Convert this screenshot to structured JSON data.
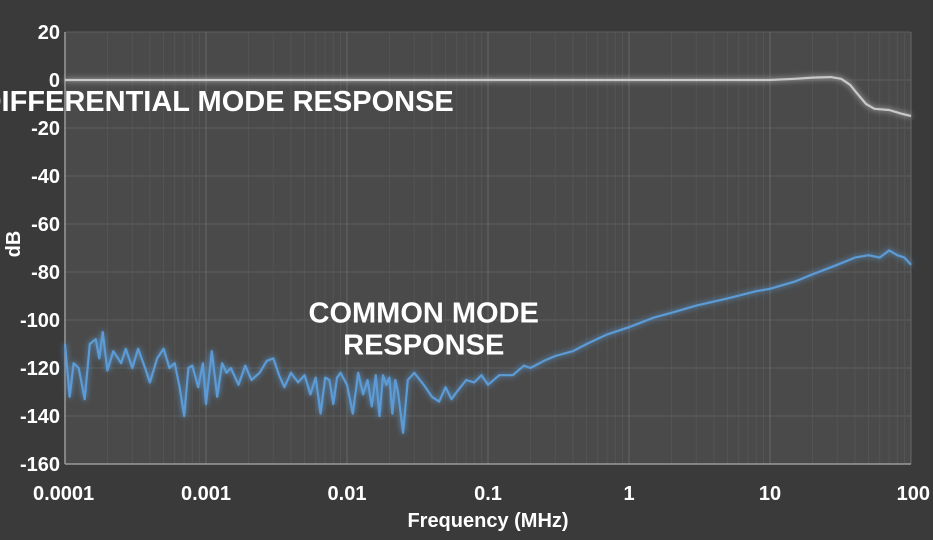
{
  "chart_data": {
    "type": "line",
    "xlabel": "Frequency (MHz)",
    "ylabel": "dB",
    "x_scale": "log",
    "xlim": [
      0.0001,
      100
    ],
    "ylim": [
      -160,
      20
    ],
    "grid": true,
    "x_ticks": [
      {
        "value": 0.0001,
        "label": "0.0001"
      },
      {
        "value": 0.001,
        "label": "0.001"
      },
      {
        "value": 0.01,
        "label": "0.01"
      },
      {
        "value": 0.1,
        "label": "0.1"
      },
      {
        "value": 1,
        "label": "1"
      },
      {
        "value": 10,
        "label": "10"
      },
      {
        "value": 100,
        "label": "100"
      }
    ],
    "y_ticks": [
      {
        "value": 20,
        "label": "20"
      },
      {
        "value": 0,
        "label": "0"
      },
      {
        "value": -20,
        "label": "-20"
      },
      {
        "value": -40,
        "label": "-40"
      },
      {
        "value": -60,
        "label": "-60"
      },
      {
        "value": -80,
        "label": "-80"
      },
      {
        "value": -100,
        "label": "-100"
      },
      {
        "value": -120,
        "label": "-120"
      },
      {
        "value": -140,
        "label": "-140"
      },
      {
        "value": -160,
        "label": "-160"
      }
    ],
    "annotations": [
      {
        "lines": [
          "DIFFERENTIAL MODE RESPONSE"
        ],
        "x": 0.0012,
        "y": -13
      },
      {
        "lines": [
          "COMMON MODE",
          "RESPONSE"
        ],
        "x": 0.035,
        "y": -101
      }
    ],
    "series": [
      {
        "color": "#c8c8c8",
        "points": [
          [
            0.0001,
            0
          ],
          [
            0.001,
            0
          ],
          [
            0.01,
            0
          ],
          [
            0.1,
            0
          ],
          [
            1,
            0
          ],
          [
            5,
            0
          ],
          [
            10,
            0
          ],
          [
            15,
            0.5
          ],
          [
            20,
            1
          ],
          [
            27,
            1.2
          ],
          [
            32,
            0.5
          ],
          [
            37,
            -2
          ],
          [
            42,
            -6
          ],
          [
            48,
            -10
          ],
          [
            55,
            -12
          ],
          [
            70,
            -12.5
          ],
          [
            85,
            -14
          ],
          [
            100,
            -15
          ]
        ]
      },
      {
        "color": "#5b9bd5",
        "points": [
          [
            0.0001,
            -110
          ],
          [
            0.000108,
            -132
          ],
          [
            0.000115,
            -118
          ],
          [
            0.000125,
            -120
          ],
          [
            0.000138,
            -133
          ],
          [
            0.00015,
            -110
          ],
          [
            0.000165,
            -108
          ],
          [
            0.000175,
            -116
          ],
          [
            0.000185,
            -105
          ],
          [
            0.0002,
            -121
          ],
          [
            0.00022,
            -113
          ],
          [
            0.00025,
            -118
          ],
          [
            0.00027,
            -112
          ],
          [
            0.0003,
            -120
          ],
          [
            0.00033,
            -112
          ],
          [
            0.00037,
            -120
          ],
          [
            0.0004,
            -126
          ],
          [
            0.00045,
            -116
          ],
          [
            0.0005,
            -112
          ],
          [
            0.00055,
            -120
          ],
          [
            0.0006,
            -118
          ],
          [
            0.00065,
            -128
          ],
          [
            0.0007,
            -140
          ],
          [
            0.00075,
            -120
          ],
          [
            0.0008,
            -119
          ],
          [
            0.00088,
            -128
          ],
          [
            0.00095,
            -118
          ],
          [
            0.001,
            -135
          ],
          [
            0.0011,
            -113
          ],
          [
            0.0012,
            -132
          ],
          [
            0.0013,
            -118
          ],
          [
            0.0014,
            -122
          ],
          [
            0.0015,
            -120
          ],
          [
            0.0017,
            -127
          ],
          [
            0.0019,
            -119
          ],
          [
            0.0021,
            -125
          ],
          [
            0.0024,
            -122
          ],
          [
            0.0027,
            -117
          ],
          [
            0.003,
            -116
          ],
          [
            0.0033,
            -123
          ],
          [
            0.0036,
            -128
          ],
          [
            0.004,
            -122
          ],
          [
            0.0045,
            -126
          ],
          [
            0.005,
            -123
          ],
          [
            0.0055,
            -131
          ],
          [
            0.006,
            -124
          ],
          [
            0.0065,
            -139
          ],
          [
            0.007,
            -124
          ],
          [
            0.0075,
            -125
          ],
          [
            0.008,
            -135
          ],
          [
            0.0085,
            -124
          ],
          [
            0.009,
            -122
          ],
          [
            0.01,
            -127
          ],
          [
            0.011,
            -139
          ],
          [
            0.012,
            -122
          ],
          [
            0.013,
            -131
          ],
          [
            0.014,
            -125
          ],
          [
            0.015,
            -136
          ],
          [
            0.016,
            -123
          ],
          [
            0.017,
            -140
          ],
          [
            0.018,
            -123
          ],
          [
            0.019,
            -127
          ],
          [
            0.02,
            -124
          ],
          [
            0.021,
            -139
          ],
          [
            0.022,
            -125
          ],
          [
            0.023,
            -130
          ],
          [
            0.025,
            -147
          ],
          [
            0.027,
            -125
          ],
          [
            0.03,
            -122
          ],
          [
            0.035,
            -127
          ],
          [
            0.04,
            -132
          ],
          [
            0.045,
            -134
          ],
          [
            0.05,
            -128
          ],
          [
            0.055,
            -133
          ],
          [
            0.06,
            -130
          ],
          [
            0.07,
            -125
          ],
          [
            0.08,
            -126
          ],
          [
            0.09,
            -123
          ],
          [
            0.1,
            -127
          ],
          [
            0.12,
            -123
          ],
          [
            0.15,
            -123
          ],
          [
            0.18,
            -119
          ],
          [
            0.2,
            -120
          ],
          [
            0.25,
            -117
          ],
          [
            0.3,
            -115
          ],
          [
            0.4,
            -113
          ],
          [
            0.5,
            -110
          ],
          [
            0.7,
            -106
          ],
          [
            1,
            -103
          ],
          [
            1.5,
            -99
          ],
          [
            2,
            -97
          ],
          [
            3,
            -94
          ],
          [
            5,
            -91
          ],
          [
            8,
            -88
          ],
          [
            10,
            -87
          ],
          [
            15,
            -84
          ],
          [
            20,
            -81
          ],
          [
            30,
            -77
          ],
          [
            40,
            -74
          ],
          [
            50,
            -73
          ],
          [
            60,
            -74
          ],
          [
            70,
            -71
          ],
          [
            80,
            -73
          ],
          [
            90,
            -74
          ],
          [
            100,
            -77
          ]
        ]
      }
    ]
  }
}
